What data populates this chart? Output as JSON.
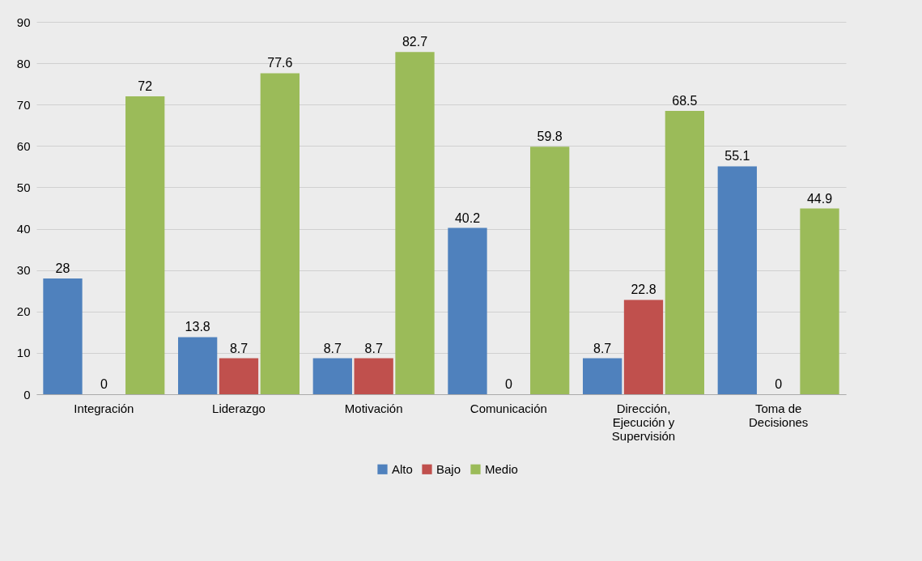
{
  "chart_data": {
    "type": "bar",
    "categories": [
      "Integración",
      "Liderazgo",
      "Motivación",
      "Comunicación",
      "Dirección, Ejecución y Supervisión",
      "Toma de Decisiones"
    ],
    "series": [
      {
        "name": "Alto",
        "color": "#4f81bd",
        "values": [
          28,
          13.8,
          8.7,
          40.2,
          8.7,
          55.1
        ]
      },
      {
        "name": "Bajo",
        "color": "#c0504d",
        "values": [
          0,
          8.7,
          8.7,
          0,
          22.8,
          0
        ]
      },
      {
        "name": "Medio",
        "color": "#9bbb59",
        "values": [
          72,
          77.6,
          82.7,
          59.8,
          68.5,
          44.9
        ]
      }
    ],
    "ylim": [
      0,
      90
    ],
    "yticks": [
      0,
      10,
      20,
      30,
      40,
      50,
      60,
      70,
      80,
      90
    ],
    "grid": "y",
    "legend": "bottom",
    "data_labels": true
  }
}
